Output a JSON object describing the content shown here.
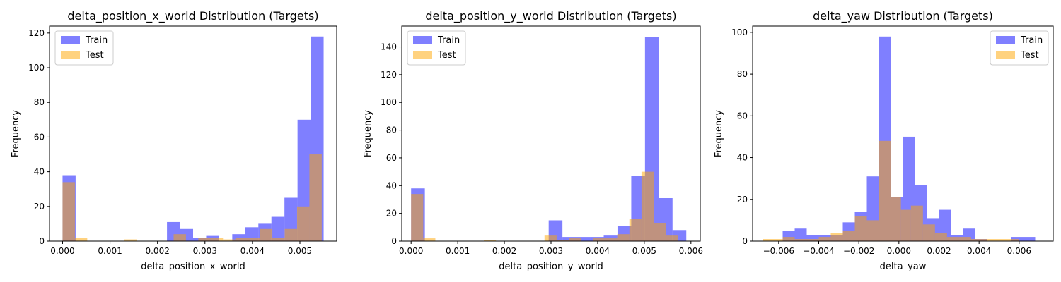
{
  "chart_data": [
    {
      "type": "bar",
      "title": "delta_position_x_world Distribution (Targets)",
      "xlabel": "delta_position_x_world",
      "ylabel": "Frequency",
      "xlim": [
        -0.000275,
        0.005775
      ],
      "ylim": [
        0,
        124
      ],
      "xticks": [
        0.0,
        0.001,
        0.002,
        0.003,
        0.004,
        0.005
      ],
      "xtick_labels": [
        "0.000",
        "0.001",
        "0.002",
        "0.003",
        "0.004",
        "0.005"
      ],
      "yticks": [
        0,
        20,
        40,
        60,
        80,
        100,
        120
      ],
      "legend": "top-left",
      "series": [
        {
          "name": "Train",
          "color": "#0000ff",
          "opacity": 0.5,
          "bin_edges": [
            0.0,
            0.000275,
            0.00055,
            0.000825,
            0.0011,
            0.001375,
            0.00165,
            0.001925,
            0.0022,
            0.002475,
            0.00275,
            0.003025,
            0.0033,
            0.003575,
            0.00385,
            0.004125,
            0.0044,
            0.004675,
            0.00495,
            0.005225,
            0.0055
          ],
          "counts": [
            38,
            0,
            0,
            0,
            0,
            0,
            0,
            0,
            11,
            7,
            2,
            3,
            0,
            4,
            8,
            10,
            14,
            25,
            70,
            118
          ]
        },
        {
          "name": "Test",
          "color": "#ffa500",
          "opacity": 0.5,
          "bin_edges": [
            0.0,
            0.00026,
            0.00052,
            0.00078,
            0.00104,
            0.0013,
            0.00156,
            0.00182,
            0.00208,
            0.00234,
            0.0026,
            0.00286,
            0.00312,
            0.00338,
            0.00364,
            0.0039,
            0.00416,
            0.00442,
            0.00468,
            0.00494,
            0.0052,
            0.00546
          ],
          "counts": [
            34,
            2,
            0,
            0,
            0,
            1,
            0,
            0,
            0,
            4,
            0,
            2,
            2,
            1,
            2,
            2,
            7,
            2,
            7,
            20,
            50
          ]
        }
      ]
    },
    {
      "type": "bar",
      "title": "delta_position_y_world Distribution (Targets)",
      "xlabel": "delta_position_y_world",
      "ylabel": "Frequency",
      "xlim": [
        -0.0002,
        0.0062
      ],
      "ylim": [
        0,
        155
      ],
      "xticks": [
        0.0,
        0.001,
        0.002,
        0.003,
        0.004,
        0.005,
        0.006
      ],
      "xtick_labels": [
        "0.000",
        "0.001",
        "0.002",
        "0.003",
        "0.004",
        "0.005",
        "0.006"
      ],
      "yticks": [
        0,
        20,
        40,
        60,
        80,
        100,
        120,
        140
      ],
      "legend": "top-left",
      "series": [
        {
          "name": "Train",
          "color": "#0000ff",
          "opacity": 0.5,
          "bin_edges": [
            0.0,
            0.000295,
            0.00059,
            0.000885,
            0.00118,
            0.001475,
            0.00177,
            0.002065,
            0.00236,
            0.002655,
            0.00295,
            0.003245,
            0.00354,
            0.003835,
            0.00413,
            0.004425,
            0.00472,
            0.005015,
            0.00531,
            0.005605,
            0.0059
          ],
          "counts": [
            38,
            0,
            0,
            0,
            0,
            0,
            0,
            0,
            0,
            0,
            15,
            3,
            3,
            3,
            4,
            11,
            47,
            147,
            31,
            8
          ]
        },
        {
          "name": "Test",
          "color": "#ffa500",
          "opacity": 0.5,
          "bin_edges": [
            0.0,
            0.00026,
            0.00052,
            0.00078,
            0.00104,
            0.0013,
            0.00156,
            0.00182,
            0.00208,
            0.00234,
            0.0026,
            0.00286,
            0.00312,
            0.00338,
            0.00364,
            0.0039,
            0.00416,
            0.00442,
            0.00468,
            0.00494,
            0.0052,
            0.00546,
            0.00572
          ],
          "counts": [
            34,
            2,
            0,
            0,
            0,
            0,
            1,
            0,
            0,
            0,
            0,
            4,
            1,
            2,
            0,
            2,
            2,
            5,
            16,
            50,
            13,
            4
          ]
        }
      ]
    },
    {
      "type": "bar",
      "title": "delta_yaw Distribution (Targets)",
      "xlabel": "delta_yaw",
      "ylabel": "Frequency",
      "xlim": [
        -0.0073,
        0.0077
      ],
      "ylim": [
        0,
        103
      ],
      "xticks": [
        -0.006,
        -0.004,
        -0.002,
        0.0,
        0.002,
        0.004,
        0.006
      ],
      "xtick_labels": [
        "−0.006",
        "−0.004",
        "−0.002",
        "0.000",
        "0.002",
        "0.004",
        "0.006"
      ],
      "yticks": [
        0,
        20,
        40,
        60,
        80,
        100
      ],
      "legend": "top-right",
      "series": [
        {
          "name": "Train",
          "color": "#0000ff",
          "opacity": 0.5,
          "bin_edges": [
            -0.0058,
            -0.0052,
            -0.0046,
            -0.004,
            -0.0034,
            -0.0028,
            -0.0022,
            -0.0016,
            -0.001,
            -0.0004,
            0.0002,
            0.0008,
            0.0014,
            0.002,
            0.0026,
            0.0032,
            0.0038,
            0.0044,
            0.005,
            0.0056,
            0.0062,
            0.0068
          ],
          "counts": [
            5,
            6,
            3,
            3,
            3,
            9,
            14,
            31,
            98,
            21,
            50,
            27,
            11,
            15,
            3,
            6,
            1,
            0,
            0,
            2,
            2
          ]
        },
        {
          "name": "Test",
          "color": "#ffa500",
          "opacity": 0.5,
          "bin_edges": [
            -0.0068,
            -0.0058,
            -0.0052,
            -0.0046,
            -0.004,
            -0.0034,
            -0.0028,
            -0.0022,
            -0.0016,
            -0.001,
            -0.0004,
            0.0001,
            0.0006,
            0.0012,
            0.0018,
            0.0024,
            0.003,
            0.0036,
            0.0042,
            0.0048,
            0.0054,
            0.006
          ],
          "counts": [
            1,
            2,
            1,
            1,
            2,
            4,
            5,
            12,
            10,
            48,
            21,
            15,
            17,
            8,
            4,
            2,
            2,
            1,
            1,
            1,
            1
          ]
        }
      ]
    }
  ]
}
